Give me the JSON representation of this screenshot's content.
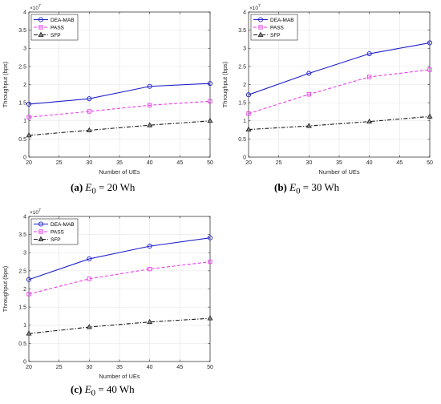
{
  "colors": {
    "DEA-MAB": "#1f1fcc",
    "PASS": "#e83ee8",
    "SFP": "#1a1a1a"
  },
  "panels": [
    {
      "caption": {
        "letter": "(a)",
        "var": "E",
        "sub": "0",
        "rest": " = 20 Wh"
      },
      "multiplier": {
        "base": "×10",
        "exp": "7"
      }
    },
    {
      "caption": {
        "letter": "(b)",
        "var": "E",
        "sub": "0",
        "rest": " = 30 Wh"
      },
      "multiplier": {
        "base": "×10",
        "exp": "7"
      }
    },
    {
      "caption": {
        "letter": "(c)",
        "var": "E",
        "sub": "0",
        "rest": " = 40 Wh"
      },
      "multiplier": {
        "base": "×10",
        "exp": "7"
      }
    }
  ],
  "chart_data": [
    {
      "type": "line",
      "xlabel": "Number of UEs",
      "ylabel": "Throughput (bps)",
      "x": [
        20,
        30,
        40,
        50
      ],
      "xlim": [
        20,
        50
      ],
      "xticks": [
        20,
        25,
        30,
        35,
        40,
        45,
        50
      ],
      "ylim": [
        0,
        4
      ],
      "yticks": [
        0,
        0.5,
        1,
        1.5,
        2,
        2.5,
        3,
        3.5,
        4
      ],
      "y_scale_note": "×10^7",
      "grid": true,
      "legend_position": "top-left",
      "series": [
        {
          "name": "DEA-MAB",
          "values": [
            1.46,
            1.61,
            1.95,
            2.03
          ],
          "marker": "circle",
          "linestyle": "solid"
        },
        {
          "name": "PASS",
          "values": [
            1.1,
            1.26,
            1.43,
            1.54
          ],
          "marker": "square",
          "linestyle": "dashed"
        },
        {
          "name": "SFP",
          "values": [
            0.6,
            0.74,
            0.88,
            1.0
          ],
          "marker": "triangle",
          "linestyle": "dashdot"
        }
      ]
    },
    {
      "type": "line",
      "xlabel": "Number of UEs",
      "ylabel": "Throughput (bps)",
      "x": [
        20,
        30,
        40,
        50
      ],
      "xlim": [
        20,
        50
      ],
      "xticks": [
        20,
        25,
        30,
        35,
        40,
        45,
        50
      ],
      "ylim": [
        0,
        4
      ],
      "yticks": [
        0,
        0.5,
        1,
        1.5,
        2,
        2.5,
        3,
        3.5,
        4
      ],
      "y_scale_note": "×10^7",
      "grid": true,
      "legend_position": "top-left",
      "series": [
        {
          "name": "DEA-MAB",
          "values": [
            1.72,
            2.31,
            2.85,
            3.15
          ],
          "marker": "circle",
          "linestyle": "solid"
        },
        {
          "name": "PASS",
          "values": [
            1.2,
            1.73,
            2.21,
            2.41
          ],
          "marker": "square",
          "linestyle": "dashed"
        },
        {
          "name": "SFP",
          "values": [
            0.76,
            0.86,
            0.98,
            1.12
          ],
          "marker": "triangle",
          "linestyle": "dashdot"
        }
      ]
    },
    {
      "type": "line",
      "xlabel": "Number of UEs",
      "ylabel": "Throughput (bps)",
      "x": [
        20,
        30,
        40,
        50
      ],
      "xlim": [
        20,
        50
      ],
      "xticks": [
        20,
        25,
        30,
        35,
        40,
        45,
        50
      ],
      "ylim": [
        0,
        4
      ],
      "yticks": [
        0,
        0.5,
        1,
        1.5,
        2,
        2.5,
        3,
        3.5,
        4
      ],
      "y_scale_note": "×10^7",
      "grid": true,
      "legend_position": "top-left",
      "series": [
        {
          "name": "DEA-MAB",
          "values": [
            2.26,
            2.83,
            3.18,
            3.41
          ],
          "marker": "circle",
          "linestyle": "solid"
        },
        {
          "name": "PASS",
          "values": [
            1.86,
            2.28,
            2.55,
            2.75
          ],
          "marker": "square",
          "linestyle": "dashed"
        },
        {
          "name": "SFP",
          "values": [
            0.77,
            0.95,
            1.09,
            1.19
          ],
          "marker": "triangle",
          "linestyle": "dashdot"
        }
      ]
    }
  ]
}
